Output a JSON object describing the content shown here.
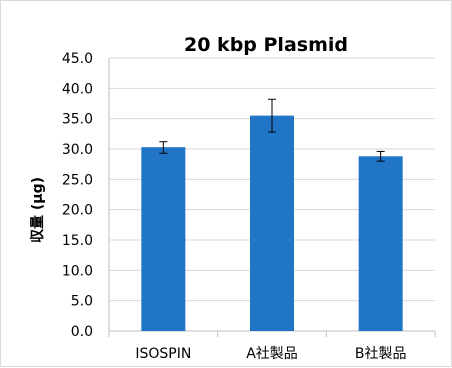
{
  "chart_data": {
    "type": "bar",
    "title": "20 kbp Plasmid",
    "ylabel": "収量 (µg)",
    "xlabel": "",
    "categories": [
      "ISOSPIN",
      "A社製品",
      "B社製品"
    ],
    "values": [
      30.3,
      35.5,
      28.8
    ],
    "error_bars": [
      {
        "low": 29.3,
        "high": 31.2
      },
      {
        "low": 32.8,
        "high": 38.2
      },
      {
        "low": 28.0,
        "high": 29.6
      }
    ],
    "ylim": [
      0,
      45
    ],
    "yticks": [
      "0.0",
      "5.0",
      "10.0",
      "15.0",
      "20.0",
      "25.0",
      "30.0",
      "35.0",
      "40.0",
      "45.0"
    ],
    "grid": true,
    "legend": "none",
    "colors": {
      "bar": "#2175c6",
      "grid": "#d9d9d9",
      "axis": "#bfbfbf",
      "error_bar": "#000000"
    }
  }
}
